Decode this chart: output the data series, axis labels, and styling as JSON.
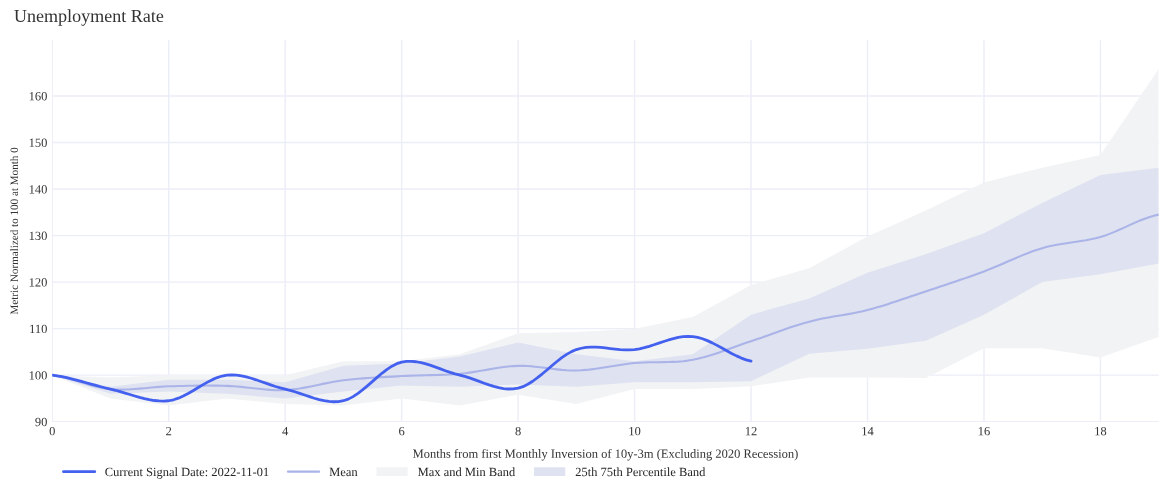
{
  "chart_data": {
    "type": "line",
    "title": "Unemployment Rate",
    "xlabel": "Months from first Monthly Inversion of 10y-3m (Excluding 2020 Recession)",
    "ylabel": "Metric Normalized to 100 at Month 0",
    "xlim": [
      0,
      19
    ],
    "ylim": [
      90,
      172
    ],
    "xticks": [
      0,
      2,
      4,
      6,
      8,
      10,
      12,
      14,
      16,
      18
    ],
    "yticks": [
      90,
      100,
      110,
      120,
      130,
      140,
      150,
      160
    ],
    "grid": true,
    "legend": "bottom left",
    "series": [
      {
        "name": "Current Signal Date: 2022-11-01",
        "color": "#4361ee",
        "x": [
          0,
          1,
          2,
          3,
          4,
          5,
          6,
          7,
          8,
          9,
          10,
          11,
          12
        ],
        "values": [
          100,
          97,
          94.5,
          100,
          97,
          94.5,
          102.8,
          100,
          97.2,
          105.5,
          105.5,
          108.3,
          103
        ]
      },
      {
        "name": "Mean",
        "color": "#aab4e8",
        "x": [
          0,
          1,
          2,
          3,
          4,
          5,
          6,
          7,
          8,
          9,
          10,
          11,
          12,
          13,
          14,
          15,
          16,
          17,
          18,
          19
        ],
        "values": [
          100,
          97,
          97.6,
          97.7,
          96.8,
          98.9,
          99.8,
          100.3,
          102,
          101,
          102.6,
          103.3,
          107.3,
          111.5,
          114,
          118,
          122.3,
          127.3,
          129.7,
          134.5
        ]
      },
      {
        "name": "Max and Min Band",
        "type": "area",
        "color": "#f2f3f5",
        "x": [
          0,
          1,
          2,
          3,
          4,
          5,
          6,
          7,
          8,
          9,
          10,
          11,
          12,
          13,
          14,
          15,
          16,
          17,
          18,
          19
        ],
        "values": [
          null,
          null,
          null,
          null,
          null,
          null,
          null,
          null,
          null,
          null,
          null,
          null,
          null,
          null,
          null,
          null,
          null,
          null,
          null,
          null
        ],
        "lower": [
          100,
          95,
          93.5,
          95,
          93.8,
          93.5,
          95,
          93.5,
          95.8,
          93.8,
          97,
          97,
          97.6,
          99.5,
          99.5,
          99.4,
          105.8,
          105.8,
          103.8,
          108.2
        ],
        "upper": [
          100,
          99.5,
          100,
          100,
          100,
          103,
          103,
          104.5,
          109,
          109.3,
          110,
          112.5,
          119.4,
          123,
          129.8,
          135.4,
          141.4,
          144.6,
          147.3,
          165.8
        ]
      },
      {
        "name": "25th 75th Percentile Band",
        "type": "area",
        "color": "#dfe2f0",
        "x": [
          0,
          1,
          2,
          3,
          4,
          5,
          6,
          7,
          8,
          9,
          10,
          11,
          12,
          13,
          14,
          15,
          16,
          17,
          18,
          19
        ],
        "values": [
          null,
          null,
          null,
          null,
          null,
          null,
          null,
          null,
          null,
          null,
          null,
          null,
          null,
          null,
          null,
          null,
          null,
          null,
          null,
          null
        ],
        "lower": [
          100,
          96,
          96.5,
          96,
          95,
          96.5,
          97.8,
          97.5,
          98,
          97.5,
          98.5,
          98.5,
          98.7,
          104.6,
          105.7,
          107.4,
          113,
          120,
          121.7,
          124
        ],
        "upper": [
          100,
          97.5,
          99,
          99,
          98.5,
          102,
          102.5,
          104,
          107,
          104.5,
          103,
          104.5,
          113,
          116.5,
          122,
          126,
          130.5,
          137,
          143,
          144.6
        ]
      }
    ]
  }
}
